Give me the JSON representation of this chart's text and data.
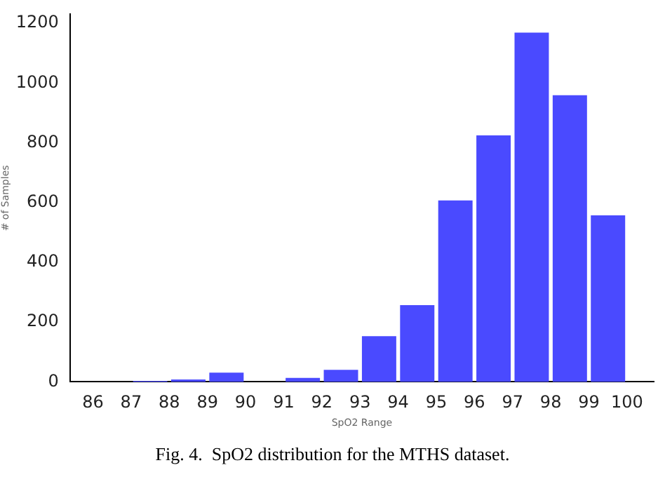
{
  "chart_data": {
    "type": "histogram",
    "xlabel": "SpO2 Range",
    "ylabel": "# of Samples",
    "bins": [
      86,
      87,
      88,
      89,
      90,
      91,
      92,
      93,
      94,
      95,
      96,
      97,
      98,
      99,
      100
    ],
    "values": [
      0,
      3,
      8,
      31,
      0,
      13,
      40,
      153,
      257,
      607,
      825,
      1169,
      959,
      557
    ],
    "color": "#4a4aff",
    "xlim": [
      85.4,
      100.7
    ],
    "xticks": [
      86,
      87,
      88,
      89,
      90,
      91,
      92,
      93,
      94,
      95,
      96,
      97,
      98,
      99,
      100
    ],
    "ylim": [
      0,
      1230
    ],
    "yticks": [
      0,
      200,
      400,
      600,
      800,
      1000,
      1200
    ],
    "grid": false,
    "annotations": [
      "Fig. 4.  SpO2 distribution for the MTHS dataset."
    ]
  }
}
